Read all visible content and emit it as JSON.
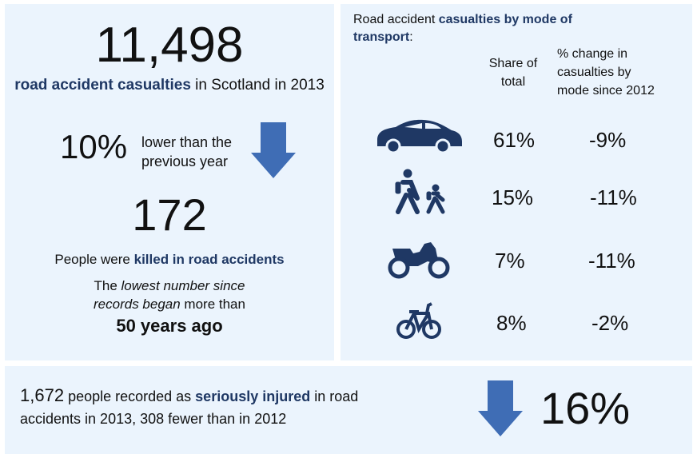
{
  "casualties": {
    "total": "11,498",
    "label_hl": "road accident casualties",
    "label_rest": " in Scotland in 2013",
    "pct": "10%",
    "pct_text_1": "lower than the",
    "pct_text_2": "previous year"
  },
  "killed": {
    "total": "172",
    "label_pre": "People were ",
    "label_hl": "killed in road accidents",
    "line1_pre": "The ",
    "line1_em": "lowest number since",
    "line2_em": "records began",
    "line2_rest": " more than",
    "line3": "50 years ago"
  },
  "modes": {
    "title_pre": "Road accident ",
    "title_hl": "casualties by mode of",
    "title_hl2": "transport",
    "title_post": ":",
    "col_share": [
      "Share of",
      "total"
    ],
    "col_change": [
      "% change in",
      "casualties by",
      "mode since 2012"
    ],
    "rows": [
      {
        "icon": "car-icon",
        "share": "61%",
        "change": "-9%"
      },
      {
        "icon": "pedestrians-icon",
        "share": "15%",
        "change": "-11%"
      },
      {
        "icon": "motorcycle-icon",
        "share": "7%",
        "change": "-11%"
      },
      {
        "icon": "bicycle-icon",
        "share": "8%",
        "change": "-2%"
      }
    ]
  },
  "injured": {
    "count": "1,672",
    "text_pre": " people recorded as ",
    "text_hl": "seriously injured",
    "text_post": " in road",
    "line2": "accidents in 2013, 308 fewer than in 2012",
    "pct": "16%"
  },
  "colors": {
    "panel": "#ebf4fd",
    "accent": "#1f3864",
    "arrow": "#3f6db5"
  }
}
